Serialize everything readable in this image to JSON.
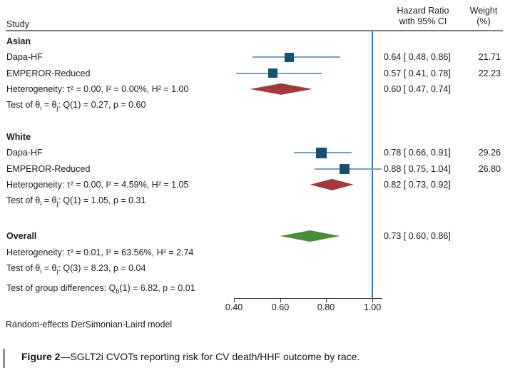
{
  "header": {
    "study": "Study",
    "hr_line1": "Hazard Ratio",
    "hr_line2": "with 95% CI",
    "weight_line1": "Weight",
    "weight_line2": "(%)"
  },
  "colors": {
    "marker_square": "#17506f",
    "ci_line": "#7e9eb6",
    "subgroup_diamond": "#a13a3e",
    "overall_diamond": "#4c8b3b",
    "reference_line": "#3d7ab5",
    "axis": "#3a3a3a"
  },
  "chart_data": {
    "type": "forest",
    "effect_measure": "Hazard Ratio",
    "x_ticks": [
      "0.40",
      "0.60",
      "0.80",
      "1.00"
    ],
    "x_tick_values": [
      0.4,
      0.6,
      0.8,
      1.0
    ],
    "ref_line": 1.0,
    "xlim": [
      0.4,
      1.04
    ],
    "model_note": "Random-effects DerSimonian-Laird model",
    "groups": [
      {
        "name": "Asian",
        "studies": [
          {
            "study": "Dapa-HF",
            "hr": 0.64,
            "ci_low": 0.48,
            "ci_high": 0.86,
            "weight_pct": 21.71
          },
          {
            "study": "EMPEROR-Reduced",
            "hr": 0.57,
            "ci_low": 0.41,
            "ci_high": 0.78,
            "weight_pct": 22.23
          }
        ],
        "summary": {
          "hr": 0.6,
          "ci_low": 0.47,
          "ci_high": 0.74
        },
        "heterogeneity": "Heterogeneity: τ² = 0.00, I² = 0.00%, H² = 1.00",
        "test_html": "Test of θ<sub>i</sub> = θ<sub>j</sub>: Q(1) = 0.27, p = 0.60"
      },
      {
        "name": "White",
        "studies": [
          {
            "study": "Dapa-HF",
            "hr": 0.78,
            "ci_low": 0.66,
            "ci_high": 0.91,
            "weight_pct": 29.26
          },
          {
            "study": "EMPEROR-Reduced",
            "hr": 0.88,
            "ci_low": 0.75,
            "ci_high": 1.04,
            "weight_pct": 26.8
          }
        ],
        "summary": {
          "hr": 0.82,
          "ci_low": 0.73,
          "ci_high": 0.92
        },
        "heterogeneity": "Heterogeneity: τ² = 0.00, I² = 4.59%, H² = 1.05",
        "test_html": "Test of θ<sub>i</sub> = θ<sub>j</sub>: Q(1) = 1.05, p = 0.31"
      }
    ],
    "overall": {
      "name": "Overall",
      "summary": {
        "hr": 0.73,
        "ci_low": 0.6,
        "ci_high": 0.86
      },
      "heterogeneity": "Heterogeneity: τ² = 0.01, I² = 63.56%, H² = 2.74",
      "test_html": "Test of θ<sub>i</sub> = θ<sub>j</sub>: Q(3) = 8.23, p = 0.04"
    },
    "group_difference_html": "Test of group differences: Q<sub>b</sub>(1) = 6.82, p = 0.01"
  },
  "caption": {
    "label": "Figure 2",
    "rest": "—SGLT2i CVOTs reporting risk for CV death/HHF outcome by race."
  }
}
